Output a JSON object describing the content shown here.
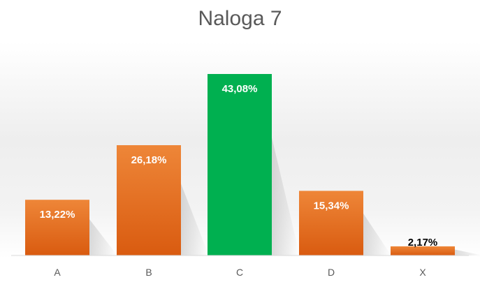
{
  "chart_data": {
    "type": "bar",
    "title": "Naloga 7",
    "categories": [
      "A",
      "B",
      "C",
      "D",
      "X"
    ],
    "values": [
      13.22,
      26.18,
      43.08,
      15.34,
      2.17
    ],
    "data_labels": [
      "13,22%",
      "26,18%",
      "43,08%",
      "15,34%",
      "2,17%"
    ],
    "ylim": [
      0,
      45
    ],
    "grid": false,
    "legend": "none",
    "bar_colors": [
      "#e0651e",
      "#e0651e",
      "#00b050",
      "#e0651e",
      "#e0651e"
    ],
    "highlight_color": "#00b050",
    "bar_color": "#e0651e",
    "label_color_inside": "#ffffff",
    "label_color_outside": "#000000",
    "axis_color": "#d9d9d9",
    "tick_color": "#595959"
  }
}
